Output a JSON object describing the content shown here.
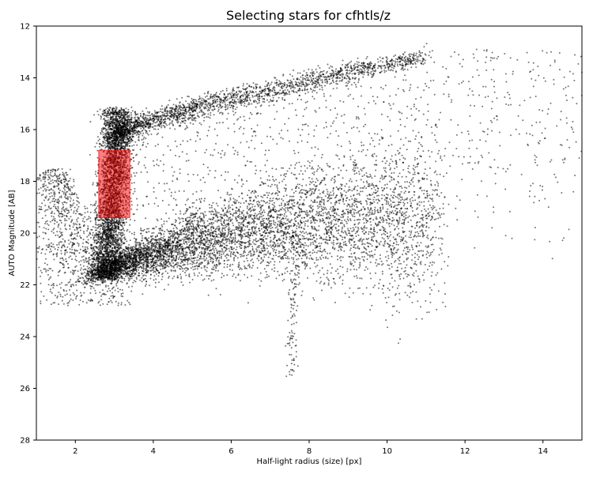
{
  "chart_data": {
    "type": "scatter",
    "title": "Selecting stars for cfhtls/z",
    "xlabel": "Half-light radius (size) [px]",
    "ylabel": "AUTO Magnitude [AB]",
    "xlim": [
      1,
      15
    ],
    "ylim": [
      28,
      12
    ],
    "y_inverted": true,
    "grid": false,
    "legend": "none",
    "xticks": [
      2,
      4,
      6,
      8,
      10,
      12,
      14
    ],
    "yticks": [
      12,
      14,
      16,
      18,
      20,
      22,
      24,
      26,
      28
    ],
    "point_color": "#000000",
    "selection_box": {
      "x_range": [
        2.6,
        3.4
      ],
      "y_range": [
        16.8,
        19.4
      ],
      "color": "#ff0000"
    },
    "point_populations": [
      {
        "name": "stellar locus",
        "x_range": [
          2.6,
          3.5
        ],
        "y_range": [
          15.2,
          21.8
        ],
        "approx_count": 3500
      },
      {
        "name": "upper bright branch",
        "x_from": [
          3.0,
          16.3
        ],
        "x_to": [
          11.0,
          13.2
        ],
        "approx_count": 2200
      },
      {
        "name": "galaxy cloud",
        "center": [
          5.5,
          19.6
        ],
        "approx_count": 6000
      },
      {
        "name": "left faint envelope",
        "x_range": [
          1.0,
          3.0
        ],
        "y_range": [
          17.5,
          22.8
        ],
        "approx_count": 900
      },
      {
        "name": "sparse field",
        "x_range": [
          3.5,
          15.0
        ],
        "y_range": [
          12.5,
          21.0
        ],
        "approx_count": 900
      },
      {
        "name": "faint vertical spur",
        "x_range": [
          7.5,
          8.0
        ],
        "y_range": [
          20.0,
          25.6
        ],
        "approx_count": 120
      }
    ]
  }
}
